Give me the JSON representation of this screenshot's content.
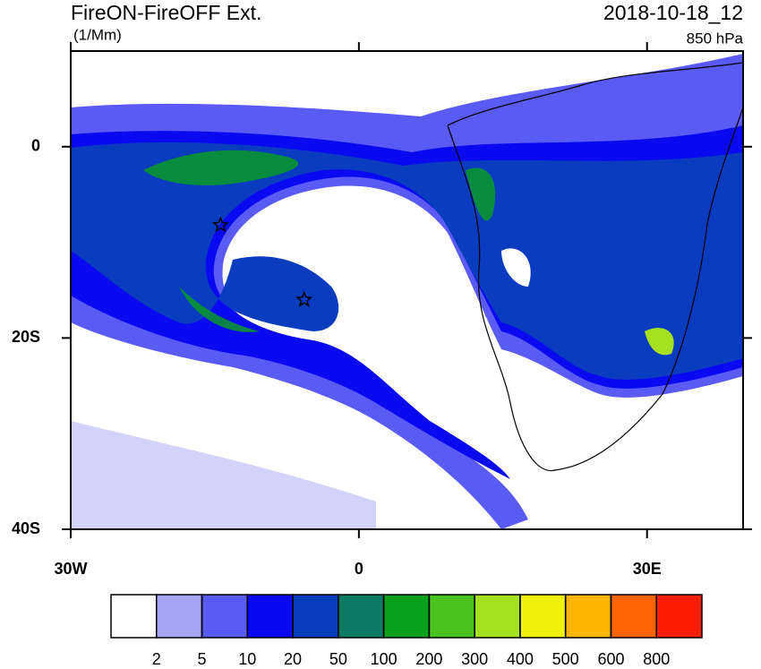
{
  "chart_data": {
    "type": "contour-map",
    "title": "FireON-FireOFF Ext.",
    "units": "(1/Mm)",
    "time": "2018-10-18_12",
    "level": "850 hPa",
    "xlim": [
      -30,
      40
    ],
    "ylim": [
      -40,
      10
    ],
    "xticks": [
      {
        "value": -30,
        "label": "30W"
      },
      0,
      {
        "value": 30,
        "label": "30E"
      }
    ],
    "yticks": [
      {
        "value": -40,
        "label": "40S"
      },
      {
        "value": -20,
        "label": "20S"
      },
      0
    ],
    "colorbar": {
      "levels": [
        2,
        5,
        10,
        20,
        50,
        100,
        200,
        300,
        400,
        500,
        600,
        800
      ],
      "colors": [
        "#ffffff",
        "#a5a5f5",
        "#5a5af5",
        "#0a0af0",
        "#0a3cc0",
        "#0a7a64",
        "#0aa01e",
        "#4bc31e",
        "#a5e11e",
        "#f0f00a",
        "#ffb400",
        "#ff6400",
        "#ff1e00"
      ]
    },
    "markers": {
      "lon": [
        -14.4,
        -5.7
      ],
      "lat": [
        -8.2,
        -16.0
      ]
    }
  }
}
